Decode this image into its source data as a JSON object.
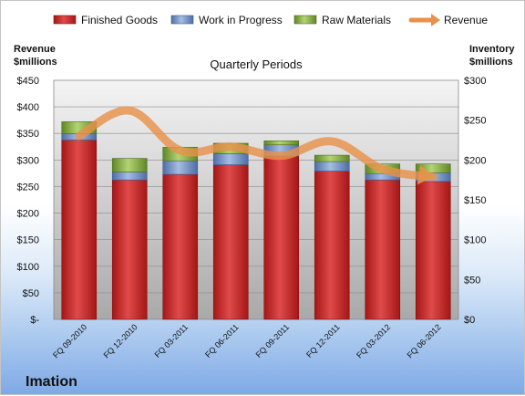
{
  "chart_data": {
    "type": "bar",
    "stacked": true,
    "subtitle": "Quarterly Periods",
    "company": "Imation",
    "ylabel_left": [
      "Revenue",
      "$millions"
    ],
    "ylabel_right": [
      "Inventory",
      "$millions"
    ],
    "categories": [
      "FQ 09-2010",
      "FQ 12-2010",
      "FQ 03-2011",
      "FQ 06-2011",
      "FQ 09-2011",
      "FQ 12-2011",
      "FQ 03-2012",
      "FQ 06-2012"
    ],
    "ylim_left": [
      0,
      450
    ],
    "ylim_right": [
      0,
      300
    ],
    "left_ticks": [
      0,
      50,
      100,
      150,
      200,
      250,
      300,
      350,
      400,
      450
    ],
    "right_ticks": [
      0,
      50,
      100,
      150,
      200,
      250,
      300
    ],
    "left_tick_labels": [
      "$-",
      "$50",
      "$100",
      "$150",
      "$200",
      "$250",
      "$300",
      "$350",
      "$400",
      "$450"
    ],
    "right_tick_labels": [
      "$0",
      "$50",
      "$100",
      "$150",
      "$200",
      "$250",
      "$300"
    ],
    "grid": true,
    "legend_position": "top",
    "series": [
      {
        "name": "Finished Goods",
        "axis": "right",
        "color": "#c82a2a",
        "values": [
          225,
          175,
          182,
          194,
          205,
          186,
          175,
          173
        ]
      },
      {
        "name": "Work in Progress",
        "axis": "right",
        "color": "#6e8fc6",
        "values": [
          8,
          10,
          17,
          14,
          14,
          12,
          8,
          11
        ]
      },
      {
        "name": "Raw Materials",
        "axis": "right",
        "color": "#8db347",
        "values": [
          15,
          17,
          17,
          13,
          5,
          8,
          12,
          11
        ]
      },
      {
        "name": "Revenue",
        "type": "line",
        "axis": "left",
        "color": "#e8914a",
        "values": [
          345,
          393,
          318,
          325,
          308,
          335,
          283,
          268
        ]
      }
    ]
  }
}
